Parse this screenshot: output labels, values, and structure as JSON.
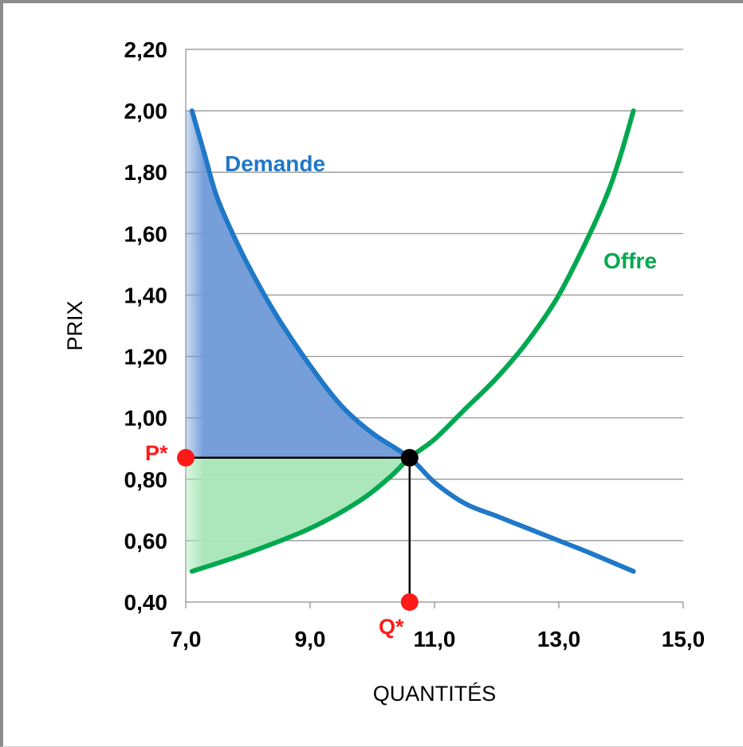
{
  "chart_data": {
    "type": "line",
    "xlabel": "QUANTITÉS",
    "ylabel": "PRIX",
    "xlim": [
      7.0,
      15.0
    ],
    "ylim": [
      0.4,
      2.2
    ],
    "x_ticks": [
      7.0,
      9.0,
      11.0,
      13.0,
      15.0
    ],
    "x_tick_labels": [
      "7,0",
      "9,0",
      "11,0",
      "13,0",
      "15,0"
    ],
    "y_ticks": [
      0.4,
      0.6,
      0.8,
      1.0,
      1.2,
      1.4,
      1.6,
      1.8,
      2.0,
      2.2
    ],
    "y_tick_labels": [
      "0,40",
      "0,60",
      "0,80",
      "1,00",
      "1,20",
      "1,40",
      "1,60",
      "1,80",
      "2,00",
      "2,20"
    ],
    "grid": "horizontal",
    "series": [
      {
        "name": "Demande",
        "color": "#1f78c8",
        "x": [
          7.1,
          7.3,
          7.5,
          7.8,
          8.1,
          8.5,
          9.0,
          9.5,
          10.0,
          10.6,
          11.0,
          11.5,
          12.0,
          12.5,
          13.0,
          13.5,
          14.2
        ],
        "y": [
          2.0,
          1.86,
          1.72,
          1.58,
          1.46,
          1.32,
          1.17,
          1.04,
          0.95,
          0.87,
          0.79,
          0.72,
          0.68,
          0.64,
          0.6,
          0.56,
          0.5
        ]
      },
      {
        "name": "Offre",
        "color": "#00a84f",
        "x": [
          7.1,
          8.0,
          9.0,
          9.8,
          10.3,
          10.6,
          11.0,
          11.5,
          12.0,
          12.5,
          13.0,
          13.5,
          13.8,
          14.0,
          14.2
        ],
        "y": [
          0.5,
          0.56,
          0.64,
          0.73,
          0.81,
          0.87,
          0.93,
          1.03,
          1.13,
          1.25,
          1.4,
          1.6,
          1.74,
          1.86,
          2.0
        ]
      }
    ],
    "equilibrium": {
      "x": 10.6,
      "y": 0.87,
      "p_label": "P*",
      "q_label": "Q*"
    },
    "colors": {
      "consumer_surplus": "#6f9ad8",
      "producer_surplus": "#a8e6b9",
      "marker": "#ff1a1a",
      "equilibrium_point": "#000000",
      "grid": "#8c8c8c"
    }
  }
}
